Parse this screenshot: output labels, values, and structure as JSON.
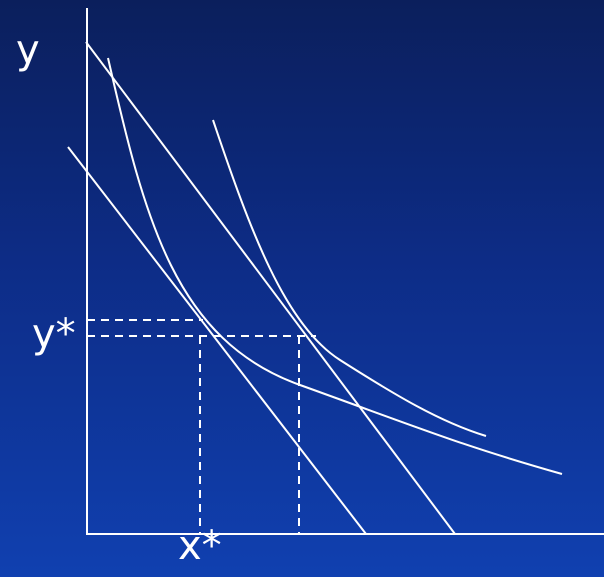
{
  "labels": {
    "y_axis": "y",
    "y_star": "y*",
    "x_star": "x*"
  },
  "colors": {
    "background_top": "#0b1f5c",
    "background_bottom": "#1040b0",
    "lines": "#ffffff"
  },
  "style": {
    "guides": "dashed"
  }
}
